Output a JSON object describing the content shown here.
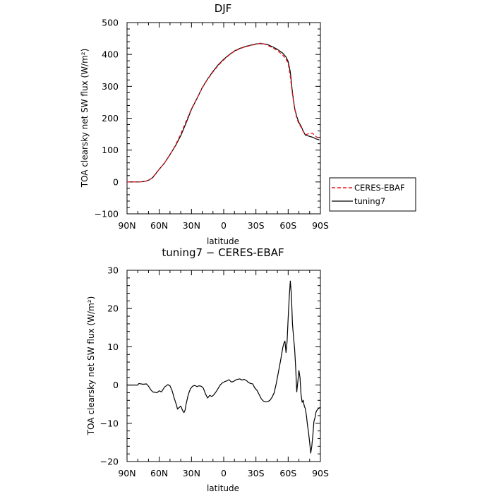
{
  "chart_data": [
    {
      "type": "line",
      "title": "DJF",
      "xlabel": "latitude",
      "ylabel": "TOA clearsky net SW flux (W/m²)",
      "xlim": [
        90,
        -90
      ],
      "ylim": [
        -100,
        500
      ],
      "xticks": [
        90,
        60,
        30,
        0,
        -30,
        -60,
        -90
      ],
      "xticklabels": [
        "90N",
        "60N",
        "30N",
        "0",
        "30S",
        "60S",
        "90S"
      ],
      "yticks": [
        -100,
        0,
        100,
        200,
        300,
        400,
        500
      ],
      "yticklabels": [
        "−100",
        "0",
        "100",
        "200",
        "300",
        "400",
        "500"
      ],
      "legend": {
        "placement": "outside-right"
      },
      "series": [
        {
          "name": "CERES-EBAF",
          "color": "#e8131b",
          "dash": "dashed",
          "x": [
            90,
            80,
            75,
            72,
            69,
            66,
            63,
            60,
            55,
            50,
            45,
            40,
            35,
            30,
            25,
            20,
            15,
            10,
            5,
            0,
            -5,
            -10,
            -15,
            -20,
            -25,
            -30,
            -35,
            -40,
            -45,
            -50,
            -55,
            -58,
            -60,
            -62,
            -64,
            -66,
            -68,
            -70,
            -72,
            -74,
            -76,
            -78,
            -80,
            -83,
            -86,
            -89
          ],
          "y": [
            0,
            0,
            1,
            3,
            7,
            15,
            28,
            40,
            60,
            85,
            115,
            150,
            190,
            230,
            262,
            295,
            322,
            345,
            366,
            383,
            398,
            410,
            418,
            424,
            428,
            432,
            436,
            430,
            422,
            412,
            398,
            385,
            372,
            330,
            275,
            230,
            200,
            182,
            172,
            158,
            148,
            150,
            153,
            152,
            142,
            137
          ]
        },
        {
          "name": "tuning7",
          "color": "#000000",
          "dash": "solid",
          "x": [
            90,
            80,
            75,
            72,
            69,
            66,
            63,
            60,
            55,
            50,
            45,
            40,
            35,
            30,
            25,
            20,
            15,
            10,
            5,
            0,
            -5,
            -10,
            -15,
            -20,
            -25,
            -30,
            -35,
            -40,
            -45,
            -50,
            -55,
            -58,
            -60,
            -62,
            -64,
            -66,
            -68,
            -70,
            -72,
            -74,
            -76,
            -78,
            -80,
            -83,
            -86,
            -89
          ],
          "y": [
            0,
            0,
            1,
            3,
            7,
            14,
            27,
            40,
            60,
            86,
            113,
            145,
            185,
            228,
            261,
            296,
            323,
            347,
            368,
            385,
            399,
            411,
            419,
            425,
            429,
            433,
            434,
            432,
            425,
            416,
            404,
            392,
            378,
            345,
            280,
            232,
            205,
            187,
            175,
            160,
            147,
            145,
            143,
            140,
            135,
            132
          ]
        }
      ]
    },
    {
      "type": "line",
      "title": "tuning7 − CERES-EBAF",
      "xlabel": "latitude",
      "ylabel": "TOA clearsky net SW flux (W/m²)",
      "xlim": [
        90,
        -90
      ],
      "ylim": [
        -20,
        30
      ],
      "xticks": [
        90,
        60,
        30,
        0,
        -30,
        -60,
        -90
      ],
      "xticklabels": [
        "90N",
        "60N",
        "30N",
        "0",
        "30S",
        "60S",
        "90S"
      ],
      "yticks": [
        -20,
        -10,
        0,
        10,
        20,
        30
      ],
      "yticklabels": [
        "−20",
        "−10",
        "0",
        "10",
        "20",
        "30"
      ],
      "series": [
        {
          "color": "#000000",
          "dash": "solid",
          "x": [
            90,
            80,
            79,
            75,
            72,
            70,
            68,
            66,
            64,
            62,
            60,
            58,
            55,
            52,
            50,
            48,
            46,
            44,
            43,
            42,
            40,
            38,
            37,
            36,
            35,
            33,
            31,
            29,
            27,
            25,
            23,
            21,
            19,
            17,
            15,
            13,
            11,
            9,
            7,
            5,
            3,
            1,
            -1,
            -3,
            -5,
            -7,
            -9,
            -11,
            -13,
            -15,
            -17,
            -19,
            -21,
            -23,
            -25,
            -27,
            -29,
            -31,
            -33,
            -35,
            -37,
            -39,
            -41,
            -43,
            -45,
            -47,
            -49,
            -51,
            -53,
            -55,
            -56,
            -57,
            -58,
            -59,
            -60,
            -61,
            -62,
            -63,
            -64,
            -65,
            -66,
            -67,
            -68,
            -69,
            -70,
            -71,
            -72,
            -73,
            -74,
            -75,
            -76,
            -77,
            -78,
            -79,
            -80,
            -81,
            -82,
            -83,
            -84,
            -85,
            -86,
            -87,
            -88,
            -89,
            -90
          ],
          "y": [
            0,
            0,
            0.4,
            0.2,
            0.3,
            -0.3,
            -1.2,
            -1.8,
            -1.9,
            -2.0,
            -1.5,
            -1.8,
            -0.5,
            0.1,
            -0.2,
            -1.5,
            -3.5,
            -5.2,
            -6.3,
            -6.0,
            -5.5,
            -6.8,
            -7.2,
            -6.6,
            -5.0,
            -2.5,
            -1.0,
            -0.3,
            -0.1,
            -0.4,
            -0.2,
            -0.3,
            -0.8,
            -2.3,
            -3.4,
            -2.7,
            -3.0,
            -2.5,
            -1.7,
            -0.8,
            0.1,
            0.6,
            0.9,
            1.1,
            1.4,
            0.8,
            0.9,
            1.3,
            1.5,
            1.6,
            1.3,
            1.5,
            1.2,
            0.7,
            0.4,
            0.3,
            -0.8,
            -1.4,
            -2.5,
            -3.6,
            -4.2,
            -4.4,
            -4.3,
            -4.0,
            -3.2,
            -2.0,
            0.5,
            3.5,
            6.5,
            9.8,
            10.9,
            11.5,
            8.5,
            11.4,
            17.5,
            23.0,
            27.2,
            23.6,
            16.0,
            12.5,
            9.5,
            4.5,
            -1.8,
            0.9,
            3.8,
            2.0,
            -2.5,
            -4.5,
            -4.0,
            -5.5,
            -6.2,
            -8.0,
            -10.5,
            -12.5,
            -15.0,
            -17.8,
            -16.0,
            -13.0,
            -9.5,
            -8.5,
            -7.0,
            -6.5,
            -6.2,
            -6.0,
            -5.8
          ]
        }
      ]
    }
  ]
}
